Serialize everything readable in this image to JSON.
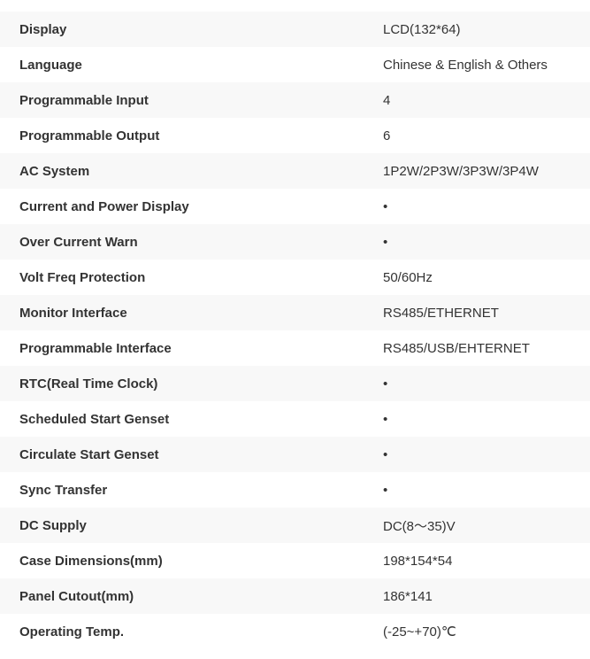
{
  "table": {
    "rows": [
      {
        "label": "Display",
        "value": "LCD(132*64)"
      },
      {
        "label": "Language",
        "value": "Chinese & English & Others"
      },
      {
        "label": "Programmable Input",
        "value": "4"
      },
      {
        "label": "Programmable Output",
        "value": "6"
      },
      {
        "label": "AC System",
        "value": "1P2W/2P3W/3P3W/3P4W"
      },
      {
        "label": "Current and Power Display",
        "value": "•"
      },
      {
        "label": "Over Current Warn",
        "value": "•"
      },
      {
        "label": "Volt Freq Protection",
        "value": "50/60Hz"
      },
      {
        "label": "Monitor Interface",
        "value": "RS485/ETHERNET"
      },
      {
        "label": "Programmable Interface",
        "value": "RS485/USB/EHTERNET"
      },
      {
        "label": "RTC(Real Time Clock)",
        "value": "•"
      },
      {
        "label": "Scheduled Start Genset",
        "value": "•"
      },
      {
        "label": "Circulate Start Genset",
        "value": "•"
      },
      {
        "label": "Sync Transfer",
        "value": "•"
      },
      {
        "label": "DC Supply",
        "value": "DC(8～35)V"
      },
      {
        "label": "Case Dimensions(mm)",
        "value": "198*154*54"
      },
      {
        "label": "Panel Cutout(mm)",
        "value": "186*141"
      },
      {
        "label": "Operating Temp.",
        "value": "(-25~+70)℃"
      }
    ],
    "colors": {
      "row_alt_bg": "#f8f8f8",
      "row_bg": "#ffffff",
      "text": "#333333"
    }
  }
}
